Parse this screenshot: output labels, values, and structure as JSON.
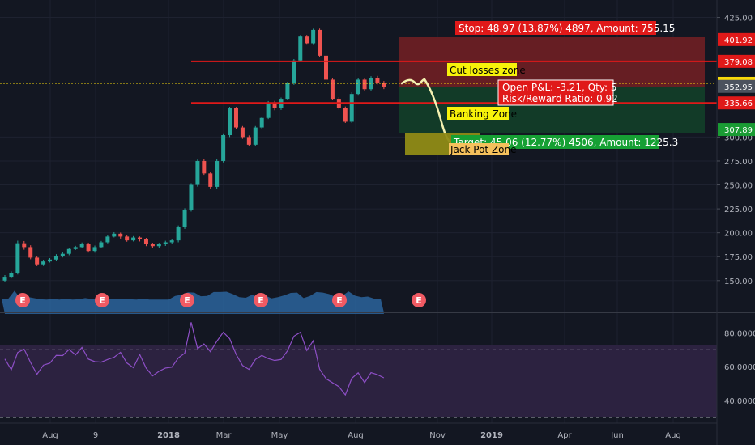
{
  "colors": {
    "background": "#131722",
    "up": "#26a69a",
    "down": "#ef5350",
    "resistance": "#e01919",
    "price_line": "#f7d90a",
    "stop_zone": "#6e1f24",
    "target_zone": "#123d29",
    "jackpot_zone": "#8f8b16",
    "path": "#f3f0b0",
    "rsi": "#8e4fc7",
    "rsi_band": "#2c2240",
    "volume": "#2f6fae",
    "earnings": "#f05a63"
  },
  "annotations": {
    "stop": "Stop: 48.97 (13.87%) 4897, Amount: 755.15",
    "target": "Target: 45.06 (12.77%) 4506, Amount: 1225.3",
    "open_pl": "Open P&L: -3.21, Qty: 5",
    "risk_reward": "Risk/Reward Ratio: 0.92",
    "cut_losses": "Cut losses zone",
    "banking": "Banking Zone",
    "jackpot": "Jack Pot Zone"
  },
  "earnings_marker": "E",
  "chart_data": [
    {
      "type": "candlestick",
      "title": "",
      "ylim": [
        138,
        428
      ],
      "y_ticks": [
        "425.00",
        "401.92",
        "379.08",
        "356.16",
        "352.95",
        "335.66",
        "307.89",
        "300.00",
        "275.00",
        "250.00",
        "225.00",
        "200.00",
        "175.00",
        "150.00"
      ],
      "x_tick_labels": [
        "Aug",
        "9",
        "2018",
        "Mar",
        "May",
        "Aug",
        "Nov",
        "2019",
        "Apr",
        "Jun",
        "Aug"
      ],
      "price_labels": [
        {
          "value": 401.92,
          "text": "401.92",
          "color": "#e01919"
        },
        {
          "value": 379.08,
          "text": "379.08",
          "color": "#e01919"
        },
        {
          "value": 356.16,
          "text": "356.16",
          "color": "#f7d90a"
        },
        {
          "value": 352.95,
          "text": "352.95",
          "color": "#4c525e"
        },
        {
          "value": 335.66,
          "text": "335.66",
          "color": "#e01919"
        },
        {
          "value": 307.89,
          "text": "307.89",
          "color": "#1a9b34"
        }
      ],
      "levels": {
        "cut_losses": 379.08,
        "banking": 335.66,
        "current": 356.16
      },
      "candles": [
        [
          150.0,
          154.0,
          155.8,
          148.6
        ],
        [
          154.0,
          158.0,
          159.7,
          152.3
        ],
        [
          158.0,
          189.0,
          191.7,
          156.4
        ],
        [
          189.0,
          185.0,
          191.3,
          182.3
        ],
        [
          185.0,
          174.0,
          186.9,
          172.3
        ],
        [
          174.0,
          167.0,
          175.5,
          165.1
        ],
        [
          167.0,
          170.0,
          171.8,
          165.3
        ],
        [
          170.0,
          172.0,
          173.5,
          168.9
        ],
        [
          172.0,
          176.0,
          177.6,
          170.3
        ],
        [
          176.0,
          178.0,
          179.7,
          174.2
        ],
        [
          178.0,
          183.0,
          184.3,
          176.5
        ],
        [
          183.0,
          185.0,
          186.3,
          182.0
        ],
        [
          185.0,
          188.0,
          189.8,
          184.1
        ],
        [
          188.0,
          181.0,
          189.6,
          179.3
        ],
        [
          181.0,
          185.0,
          186.6,
          179.2
        ],
        [
          185.0,
          190.0,
          191.4,
          183.9
        ],
        [
          190.0,
          196.0,
          197.5,
          188.9
        ],
        [
          196.0,
          199.0,
          200.6,
          195.1
        ],
        [
          199.0,
          196.0,
          200.2,
          193.9
        ],
        [
          196.0,
          192.0,
          197.3,
          190.6
        ],
        [
          192.0,
          195.0,
          196.5,
          190.9
        ],
        [
          195.0,
          193.0,
          196.1,
          190.9
        ],
        [
          193.0,
          188.0,
          194.6,
          186.0
        ],
        [
          188.0,
          186.0,
          189.5,
          184.3
        ],
        [
          186.0,
          188.0,
          189.4,
          184.1
        ],
        [
          188.0,
          190.0,
          191.6,
          186.2
        ],
        [
          190.0,
          192.0,
          193.6,
          188.5
        ],
        [
          192.0,
          206.0,
          207.6,
          190.0
        ],
        [
          206.0,
          224.0,
          225.6,
          204.0
        ],
        [
          224.0,
          250.0,
          251.7,
          222.2
        ],
        [
          250.0,
          275.0,
          276.5,
          248.2
        ],
        [
          275.0,
          262.0,
          276.8,
          260.5
        ],
        [
          262.0,
          248.0,
          263.9,
          246.0
        ],
        [
          248.0,
          275.0,
          276.8,
          246.1
        ],
        [
          275.0,
          302.0,
          303.9,
          273.5
        ],
        [
          302.0,
          330.0,
          331.6,
          300.0
        ],
        [
          330.0,
          310.0,
          331.4,
          308.7
        ],
        [
          310.0,
          300.0,
          311.5,
          298.1
        ],
        [
          300.0,
          292.0,
          301.7,
          290.5
        ],
        [
          292.0,
          310.0,
          311.5,
          290.3
        ],
        [
          310.0,
          320.0,
          321.3,
          308.8
        ],
        [
          320.0,
          336.0,
          337.6,
          318.8
        ],
        [
          336.0,
          330.0,
          337.8,
          328.0
        ],
        [
          330.0,
          340.0,
          341.3,
          328.3
        ],
        [
          340.0,
          356.0,
          357.7,
          338.4
        ],
        [
          356.0,
          380.0,
          381.5,
          354.6
        ],
        [
          380.0,
          405.0,
          406.6,
          378.5
        ],
        [
          405.0,
          398.0,
          406.7,
          396.5
        ],
        [
          398.0,
          412.0,
          413.3,
          396.3
        ],
        [
          412.0,
          385.0,
          413.4,
          383.3
        ],
        [
          385.0,
          360.0,
          386.3,
          358.0
        ],
        [
          360.0,
          340.0,
          361.8,
          338.5
        ],
        [
          340.0,
          330.0,
          341.8,
          328.7
        ],
        [
          330.0,
          316.0,
          331.9,
          314.7
        ],
        [
          316.0,
          345.0,
          346.8,
          314.7
        ],
        [
          345.0,
          360.0,
          361.7,
          343.3
        ],
        [
          360.0,
          350.0,
          361.7,
          348.3
        ],
        [
          350.0,
          362.0,
          363.6,
          348.6
        ],
        [
          362.0,
          357.0,
          363.9,
          355.0
        ],
        [
          357.0,
          352.0,
          358.6,
          350.1
        ]
      ]
    },
    {
      "type": "line",
      "title": "",
      "ylim": [
        28,
        86
      ],
      "y_ticks": [
        "80.0000",
        "60.0000",
        "40.0000"
      ],
      "bands": [
        70,
        30
      ],
      "values": [
        64.6,
        58.2,
        68.4,
        70.4,
        62.5,
        55.5,
        60.9,
        62.1,
        66.7,
        66.6,
        70.2,
        67.0,
        71.4,
        64.5,
        63.0,
        62.7,
        64.3,
        65.6,
        68.5,
        62.2,
        59.4,
        67.2,
        59.1,
        54.6,
        57.3,
        59.2,
        59.7,
        65.2,
        68.0,
        86.3,
        70.7,
        73.5,
        68.9,
        75.1,
        80.4,
        76.6,
        67.3,
        60.7,
        58.4,
        64.3,
        66.7,
        64.8,
        63.7,
        64.3,
        69.4,
        78.1,
        80.4,
        69.6,
        75.4,
        58.5,
        52.9,
        50.5,
        48.2,
        43.3,
        53.1,
        56.4,
        50.6,
        56.5,
        55.3,
        53.4
      ]
    }
  ]
}
